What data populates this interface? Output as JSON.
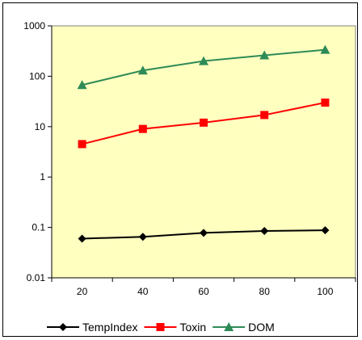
{
  "chart_data": {
    "type": "line",
    "x": [
      20,
      40,
      60,
      80,
      100
    ],
    "xlim": [
      10,
      110
    ],
    "y_scale": "log",
    "ylim": [
      0.01,
      1000
    ],
    "y_ticks": [
      "0.01",
      "0.1",
      "1",
      "10",
      "100",
      "1000"
    ],
    "x_ticks": [
      "20",
      "40",
      "60",
      "80",
      "100"
    ],
    "grid": false,
    "legend_position": "bottom",
    "plot_background": "#FFFFC0",
    "series": [
      {
        "name": "TempIndex",
        "values": [
          0.06,
          0.065,
          0.078,
          0.085,
          0.088
        ],
        "color": "#000000",
        "marker": "diamond"
      },
      {
        "name": "Toxin",
        "values": [
          4.5,
          9,
          12,
          17,
          30
        ],
        "color": "#FF0000",
        "marker": "square"
      },
      {
        "name": "DOM",
        "values": [
          67,
          130,
          200,
          260,
          335
        ],
        "color": "#2E8B57",
        "marker": "triangle"
      }
    ]
  }
}
